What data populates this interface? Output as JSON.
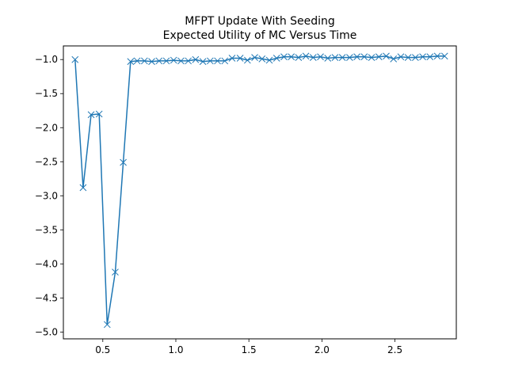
{
  "chart_data": {
    "type": "line",
    "title": "MFPT Update With Seeding",
    "subtitle": "Expected Utility of MC Versus Time",
    "xlabel": "",
    "ylabel": "",
    "xlim": [
      0.23,
      2.92
    ],
    "ylim": [
      -5.1,
      -0.8
    ],
    "grid": false,
    "x_ticks": [
      0.5,
      1.0,
      1.5,
      2.0,
      2.5
    ],
    "x_tick_labels": [
      "0.5",
      "1.0",
      "1.5",
      "2.0",
      "2.5"
    ],
    "y_ticks": [
      -1.0,
      -1.5,
      -2.0,
      -2.5,
      -3.0,
      -3.5,
      -4.0,
      -4.5,
      -5.0
    ],
    "y_tick_labels": [
      "−1.0",
      "−1.5",
      "−2.0",
      "−2.5",
      "−3.0",
      "−3.5",
      "−4.0",
      "−4.5",
      "−5.0"
    ],
    "series": [
      {
        "color": "#1f77b4",
        "marker": "x",
        "x": [
          0.31,
          0.365,
          0.42,
          0.475,
          0.53,
          0.585,
          0.64,
          0.69,
          0.735,
          0.785,
          0.835,
          0.885,
          0.935,
          0.985,
          1.035,
          1.085,
          1.135,
          1.185,
          1.235,
          1.285,
          1.335,
          1.385,
          1.44,
          1.49,
          1.54,
          1.59,
          1.64,
          1.69,
          1.74,
          1.79,
          1.84,
          1.89,
          1.94,
          1.99,
          2.04,
          2.09,
          2.14,
          2.19,
          2.24,
          2.29,
          2.34,
          2.39,
          2.44,
          2.49,
          2.54,
          2.59,
          2.64,
          2.69,
          2.74,
          2.79,
          2.84
        ],
        "y": [
          -1.0,
          -2.88,
          -1.81,
          -1.8,
          -4.89,
          -4.12,
          -2.51,
          -1.03,
          -1.02,
          -1.02,
          -1.03,
          -1.02,
          -1.02,
          -1.01,
          -1.02,
          -1.02,
          -1.0,
          -1.03,
          -1.02,
          -1.02,
          -1.02,
          -0.98,
          -0.98,
          -1.01,
          -0.97,
          -0.99,
          -1.01,
          -0.98,
          -0.96,
          -0.96,
          -0.97,
          -0.95,
          -0.97,
          -0.96,
          -0.98,
          -0.97,
          -0.97,
          -0.97,
          -0.96,
          -0.96,
          -0.97,
          -0.96,
          -0.95,
          -0.99,
          -0.96,
          -0.97,
          -0.97,
          -0.96,
          -0.96,
          -0.95,
          -0.95
        ]
      }
    ]
  }
}
